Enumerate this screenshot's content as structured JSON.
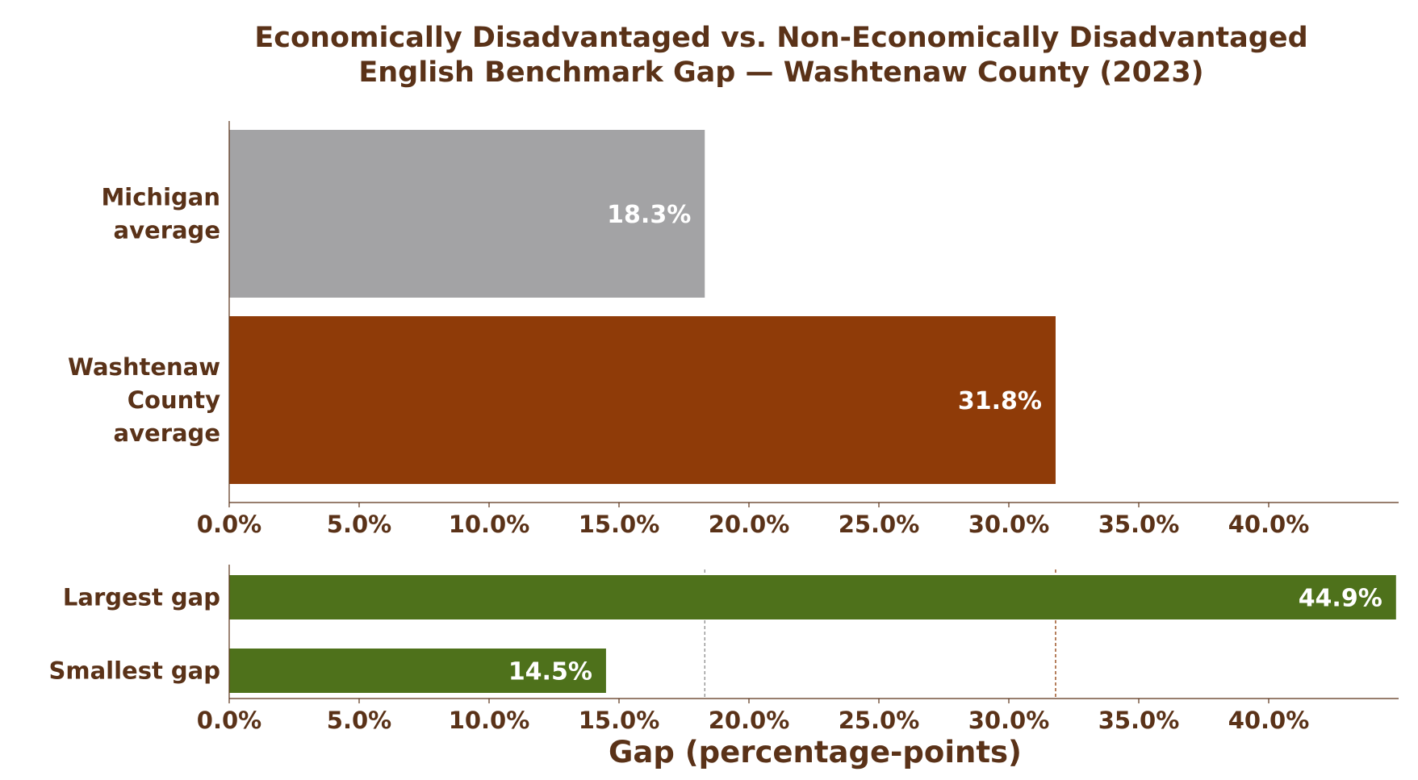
{
  "colors": {
    "text": "#5a3218",
    "axis": "#5a3218",
    "michigan": "#a3a3a5",
    "washtenaw": "#8f3b08",
    "gap": "#4e711b",
    "ref_michigan": "#8c8c8c",
    "ref_washtenaw": "#8f3b08"
  },
  "chart_data": [
    {
      "type": "bar",
      "orientation": "horizontal",
      "title": "Economically Disadvantaged vs. Non-Economically Disadvantaged English Benchmark Gap — Washtenaw County (2023)",
      "title_lines": [
        "Economically Disadvantaged vs. Non-Economically Disadvantaged",
        "English Benchmark Gap — Washtenaw County (2023)"
      ],
      "categories": [
        "Michigan average",
        "Washtenaw County average"
      ],
      "category_lines": [
        [
          "Michigan",
          "average"
        ],
        [
          "Washtenaw",
          "County",
          "average"
        ]
      ],
      "values": [
        18.3,
        31.8
      ],
      "value_labels": [
        "18.3%",
        "31.8%"
      ],
      "colors": [
        "#a3a3a5",
        "#8f3b08"
      ],
      "xlim": [
        0,
        45
      ],
      "xticks": [
        0,
        5,
        10,
        15,
        20,
        25,
        30,
        35,
        40
      ],
      "xtick_labels": [
        "0.0%",
        "5.0%",
        "10.0%",
        "15.0%",
        "20.0%",
        "25.0%",
        "30.0%",
        "35.0%",
        "40.0%"
      ],
      "grid": false
    },
    {
      "type": "bar",
      "orientation": "horizontal",
      "categories": [
        "Largest gap",
        "Smallest gap"
      ],
      "values": [
        44.9,
        14.5
      ],
      "value_labels": [
        "44.9%",
        "14.5%"
      ],
      "colors": [
        "#4e711b",
        "#4e711b"
      ],
      "xlabel": "Gap (percentage-points)",
      "xlim": [
        0,
        45
      ],
      "xticks": [
        0,
        5,
        10,
        15,
        20,
        25,
        30,
        35,
        40
      ],
      "xtick_labels": [
        "0.0%",
        "5.0%",
        "10.0%",
        "15.0%",
        "20.0%",
        "25.0%",
        "30.0%",
        "35.0%",
        "40.0%"
      ],
      "reference_lines": [
        18.3,
        31.8
      ],
      "grid": false
    }
  ]
}
